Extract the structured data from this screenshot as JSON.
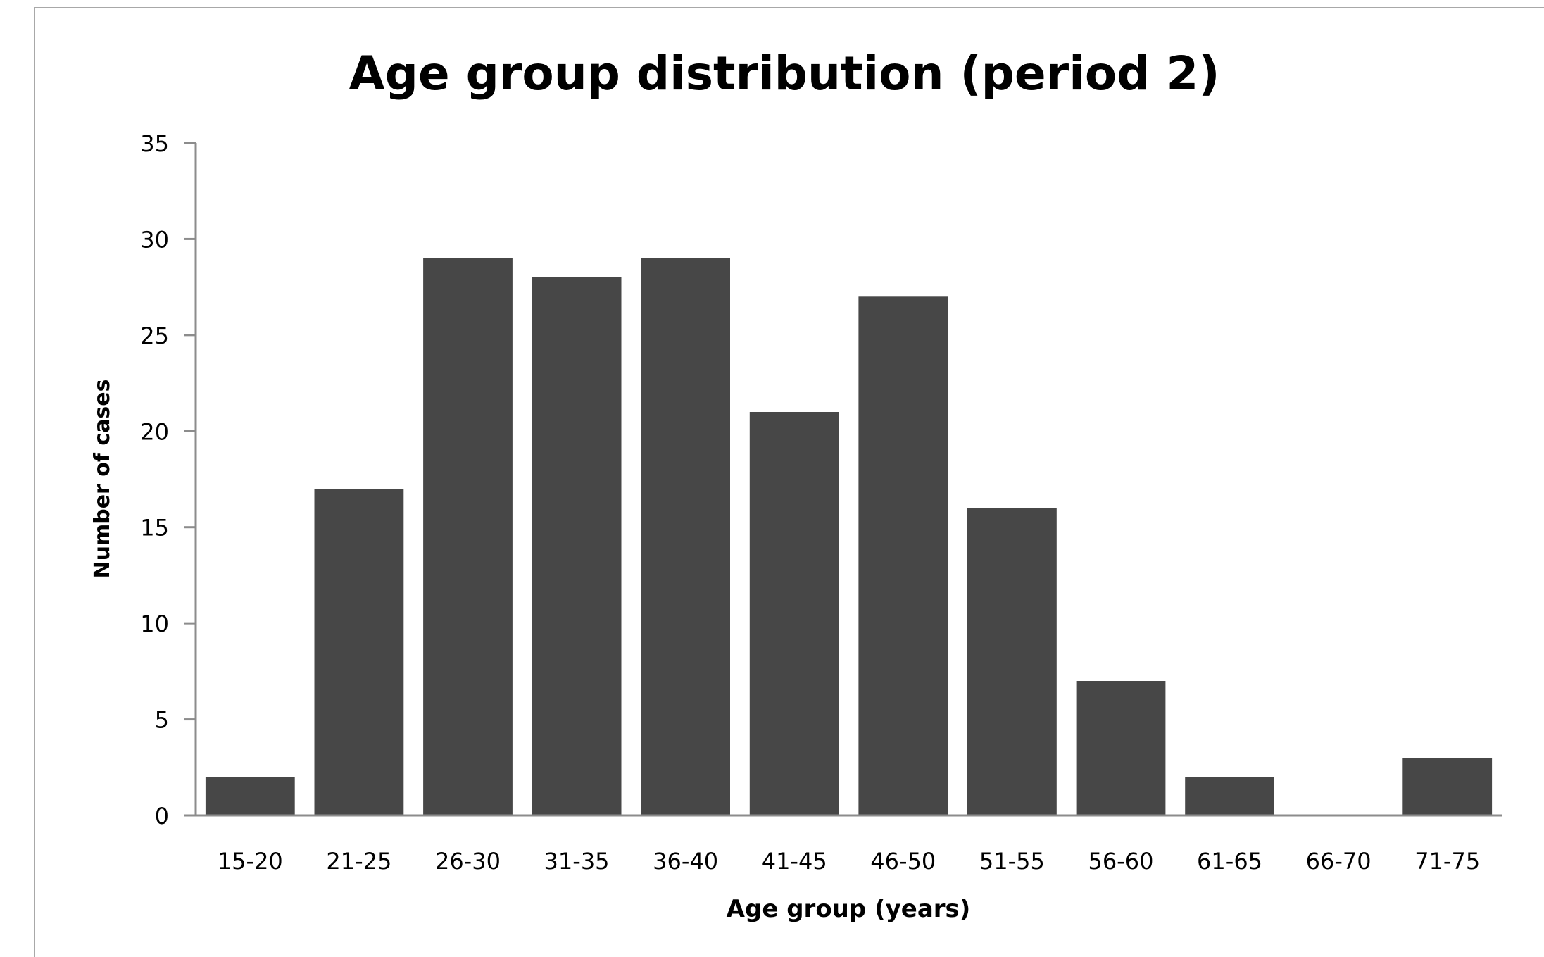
{
  "chart_data": {
    "type": "bar",
    "title": "Age group distribution (period 2)",
    "xlabel": "Age group (years)",
    "ylabel": "Number of cases",
    "categories": [
      "15-20",
      "21-25",
      "26-30",
      "31-35",
      "36-40",
      "41-45",
      "46-50",
      "51-55",
      "56-60",
      "61-65",
      "66-70",
      "71-75"
    ],
    "values": [
      2,
      17,
      29,
      28,
      29,
      21,
      27,
      16,
      7,
      2,
      0,
      3
    ],
    "ylim": [
      0,
      35
    ],
    "yticks": [
      "0",
      "5",
      "10",
      "15",
      "20",
      "25",
      "30",
      "35"
    ],
    "grid": false,
    "legend": "none",
    "bar_color": "#474747",
    "axis_color": "#8c8c8c"
  }
}
